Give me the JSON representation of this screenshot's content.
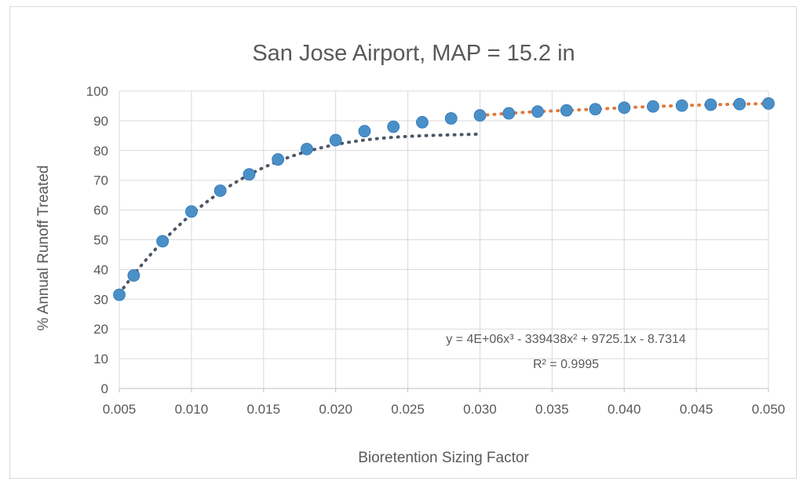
{
  "chart_data": {
    "type": "scatter",
    "title": "San Jose Airport, MAP = 15.2 in",
    "xlabel": "Bioretention Sizing Factor",
    "ylabel": "% Annual Runoff Treated",
    "xlim": [
      0.005,
      0.05
    ],
    "ylim": [
      0,
      100
    ],
    "x_ticks": [
      "0.005",
      "0.010",
      "0.015",
      "0.020",
      "0.025",
      "0.030",
      "0.035",
      "0.040",
      "0.045",
      "0.050"
    ],
    "y_ticks": [
      "0",
      "10",
      "20",
      "30",
      "40",
      "50",
      "60",
      "70",
      "80",
      "90",
      "100"
    ],
    "grid": true,
    "series": [
      {
        "color": "#4a90c8",
        "x": [
          0.005,
          0.006,
          0.008,
          0.01,
          0.012,
          0.014,
          0.016,
          0.018,
          0.02,
          0.022,
          0.024,
          0.026,
          0.028,
          0.03,
          0.032,
          0.034,
          0.036,
          0.038,
          0.04,
          0.042,
          0.044,
          0.046,
          0.048,
          0.05
        ],
        "y": [
          31.5,
          38,
          49.5,
          59.5,
          66.5,
          72,
          77,
          80.5,
          83.5,
          86.5,
          88,
          89.5,
          90.8,
          91.8,
          92.5,
          93.1,
          93.5,
          93.9,
          94.4,
          94.8,
          95.1,
          95.4,
          95.6,
          95.8
        ]
      }
    ],
    "trendlines": [
      {
        "kind": "polynomial",
        "color": "#4d5866",
        "x_range": [
          0.005,
          0.03
        ],
        "coefficients": [
          4000000,
          -339438,
          9725.1,
          -8.7314
        ],
        "equation": "y = 4E+06x³ - 339438x² + 9725.1x - 8.7314",
        "r_squared": "R² = 0.9995"
      },
      {
        "kind": "fit",
        "color": "#e07b3c",
        "x_range": [
          0.03,
          0.05
        ]
      }
    ]
  }
}
